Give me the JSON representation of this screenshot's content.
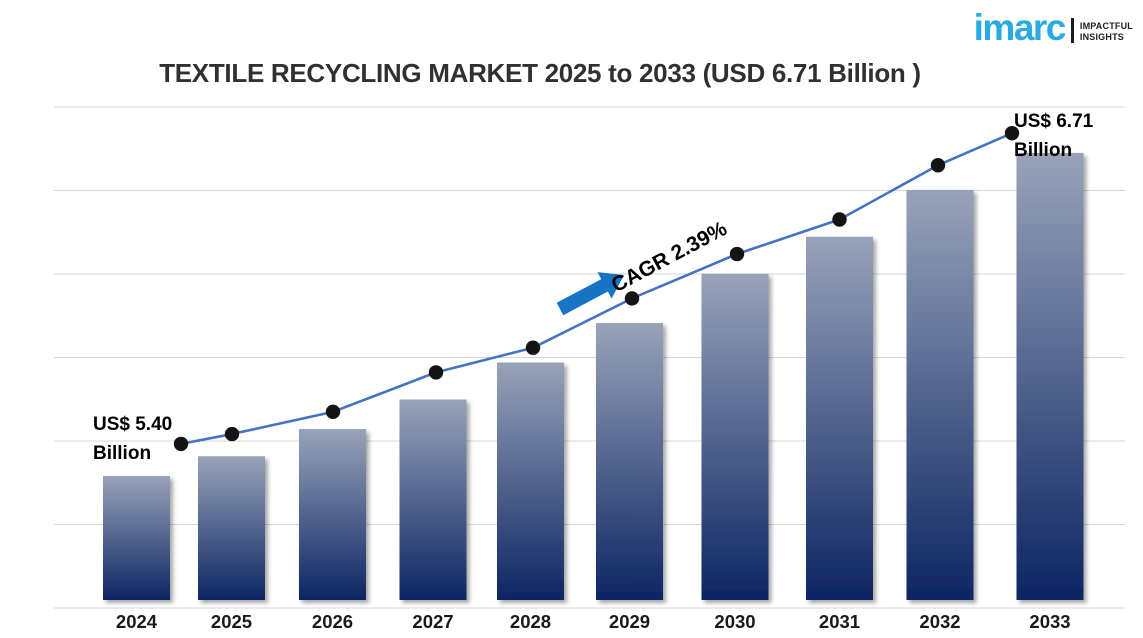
{
  "page": {
    "background": "#ffffff"
  },
  "logo": {
    "wordmark": "imarc",
    "tagline_line1": "IMPACTFUL",
    "tagline_line2": "INSIGHTS",
    "brand_color": "#29abe2",
    "text_color": "#1d1d1b"
  },
  "chart_data": {
    "type": "bar",
    "overlay": "line-with-markers",
    "title": "TEXTILE RECYCLING MARKET 2025 to 2033 (USD 6.71 Billion )",
    "unit": "USD Billion",
    "categories": [
      "2024",
      "2025",
      "2026",
      "2027",
      "2028",
      "2029",
      "2030",
      "2031",
      "2032",
      "2033"
    ],
    "series": [
      {
        "name": "Textile Recycling Market Size",
        "unit": "USD Billion",
        "values": [
          5.4,
          5.48,
          5.59,
          5.71,
          5.86,
          6.02,
          6.22,
          6.37,
          6.56,
          6.71
        ]
      }
    ],
    "trend_line": {
      "name": "growth-trend",
      "values": [
        5.53,
        5.57,
        5.66,
        5.82,
        5.92,
        6.12,
        6.3,
        6.44,
        6.66,
        6.79
      ]
    },
    "annotations": {
      "start": "US$ 5.40 Billion",
      "end": "US$ 6.71 Billion",
      "cagr": "CAGR 2.39%"
    },
    "axes": {
      "x_labels_visible": true,
      "y_labels_visible": false,
      "gridlines": "horizontal",
      "gridline_count": 7,
      "y_baseline_value": 4.9
    },
    "colors": {
      "bar_gradient_top": "#98a3b9",
      "bar_gradient_bottom": "#0d2563",
      "trend_line": "#4472c4",
      "marker": "#141414",
      "arrow": "#1773c4",
      "gridline": "#d7d7d7",
      "title_text": "#303030",
      "axis_label_text": "#1a1a1a",
      "annotation_text": "#000000"
    }
  }
}
